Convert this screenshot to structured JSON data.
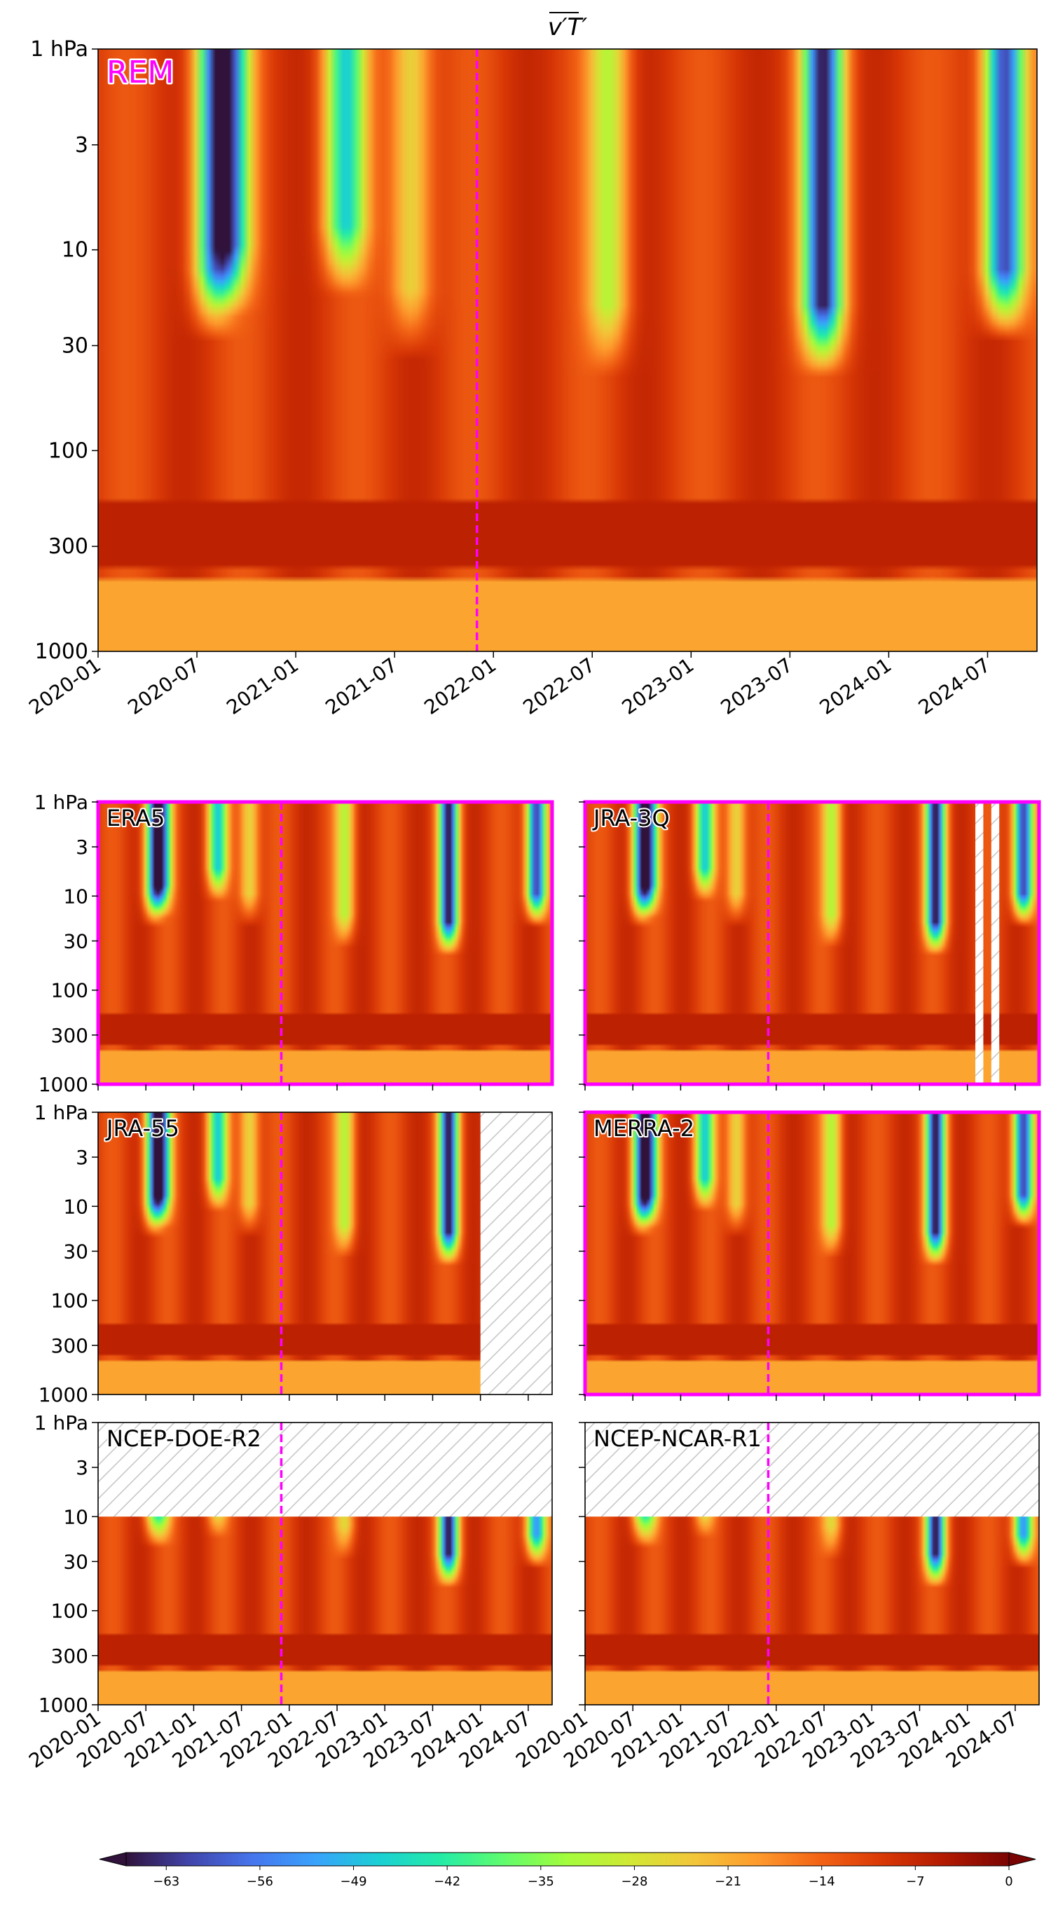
{
  "figure": {
    "title_main": "v′T′",
    "title_overbar": true
  },
  "colors": {
    "marker_line": "#ff00ff",
    "label_outline": "#ff00ff",
    "hatch": "#c8c8c8",
    "colormap": [
      "#30123b",
      "#4145ab",
      "#4675ed",
      "#39a2fc",
      "#1bcfd4",
      "#24eca6",
      "#61fc6c",
      "#a4fc3b",
      "#d1e834",
      "#f3c63a",
      "#fe9b2d",
      "#f36315",
      "#d93806",
      "#b11901",
      "#7a0403"
    ]
  },
  "chart_data": [
    {
      "type": "heatmap",
      "id": "REM",
      "panel_label": "REM",
      "label_color": "#ff00ff",
      "highlight_frame": false,
      "x_ticklabels": [
        "2020-01",
        "2020-07",
        "2021-01",
        "2021-07",
        "2022-01",
        "2022-07",
        "2023-01",
        "2023-07",
        "2024-01",
        "2024-07"
      ],
      "y_ticklabels": [
        "1 hPa",
        "3",
        "10",
        "30",
        "100",
        "300",
        "1000"
      ],
      "y_scale": "log",
      "ylim_hPa": [
        1000,
        1
      ],
      "xlim": [
        "2020-01",
        "2024-10"
      ],
      "vertical_marker": "2021-12",
      "missing": [],
      "descent_events": [
        {
          "center": "2020-08",
          "intensity": -45,
          "bottom_hPa": 20
        },
        {
          "center": "2020-09",
          "intensity": -48,
          "bottom_hPa": 15
        },
        {
          "center": "2021-04",
          "intensity": -45,
          "bottom_hPa": 12
        },
        {
          "center": "2021-08",
          "intensity": -28,
          "bottom_hPa": 25
        },
        {
          "center": "2022-08",
          "intensity": -30,
          "bottom_hPa": 30
        },
        {
          "center": "2023-09",
          "intensity": -63,
          "bottom_hPa": 30
        },
        {
          "center": "2024-08",
          "intensity": -63,
          "bottom_hPa": 20
        }
      ]
    },
    {
      "type": "heatmap",
      "id": "ERA5",
      "panel_label": "ERA5",
      "label_color": "#000000",
      "highlight_frame": true,
      "x_ticklabels": [],
      "y_ticklabels": [
        "1 hPa",
        "3",
        "10",
        "30",
        "100",
        "300",
        "1000"
      ],
      "y_scale": "log",
      "ylim_hPa": [
        1000,
        1
      ],
      "xlim": [
        "2020-01",
        "2024-10"
      ],
      "vertical_marker": "2021-12",
      "missing": [],
      "descent_events": [
        {
          "center": "2020-08",
          "intensity": -45,
          "bottom_hPa": 15
        },
        {
          "center": "2020-09",
          "intensity": -48,
          "bottom_hPa": 12
        },
        {
          "center": "2021-04",
          "intensity": -45,
          "bottom_hPa": 8
        },
        {
          "center": "2021-08",
          "intensity": -28,
          "bottom_hPa": 15
        },
        {
          "center": "2022-08",
          "intensity": -30,
          "bottom_hPa": 25
        },
        {
          "center": "2023-09",
          "intensity": -63,
          "bottom_hPa": 30
        },
        {
          "center": "2024-08",
          "intensity": -63,
          "bottom_hPa": 15
        }
      ]
    },
    {
      "type": "heatmap",
      "id": "JRA-3Q",
      "panel_label": "JRA-3Q",
      "label_color": "#000000",
      "highlight_frame": true,
      "x_ticklabels": [],
      "y_ticklabels": [],
      "y_scale": "log",
      "ylim_hPa": [
        1000,
        1
      ],
      "xlim": [
        "2020-01",
        "2024-10"
      ],
      "vertical_marker": "2021-12",
      "missing": [
        {
          "x_start": "2024-02",
          "x_end": "2024-03",
          "p_bottom_hPa": 1000
        },
        {
          "x_start": "2024-04",
          "x_end": "2024-05",
          "p_bottom_hPa": 1000
        }
      ],
      "descent_events": [
        {
          "center": "2020-08",
          "intensity": -45,
          "bottom_hPa": 15
        },
        {
          "center": "2020-09",
          "intensity": -48,
          "bottom_hPa": 12
        },
        {
          "center": "2021-04",
          "intensity": -45,
          "bottom_hPa": 8
        },
        {
          "center": "2021-08",
          "intensity": -28,
          "bottom_hPa": 15
        },
        {
          "center": "2022-08",
          "intensity": -30,
          "bottom_hPa": 25
        },
        {
          "center": "2023-09",
          "intensity": -63,
          "bottom_hPa": 30
        },
        {
          "center": "2024-08",
          "intensity": -63,
          "bottom_hPa": 15
        }
      ]
    },
    {
      "type": "heatmap",
      "id": "JRA-55",
      "panel_label": "JRA-55",
      "label_color": "#000000",
      "highlight_frame": false,
      "x_ticklabels": [],
      "y_ticklabels": [
        "1 hPa",
        "3",
        "10",
        "30",
        "100",
        "300",
        "1000"
      ],
      "y_scale": "log",
      "ylim_hPa": [
        1000,
        1
      ],
      "xlim": [
        "2020-01",
        "2024-10"
      ],
      "vertical_marker": "2021-12",
      "missing": [
        {
          "x_start": "2024-01",
          "x_end": "2024-10",
          "p_bottom_hPa": 1000
        }
      ],
      "descent_events": [
        {
          "center": "2020-08",
          "intensity": -45,
          "bottom_hPa": 15
        },
        {
          "center": "2020-09",
          "intensity": -48,
          "bottom_hPa": 12
        },
        {
          "center": "2021-04",
          "intensity": -45,
          "bottom_hPa": 8
        },
        {
          "center": "2021-08",
          "intensity": -28,
          "bottom_hPa": 15
        },
        {
          "center": "2022-08",
          "intensity": -30,
          "bottom_hPa": 25
        },
        {
          "center": "2023-09",
          "intensity": -63,
          "bottom_hPa": 30
        }
      ]
    },
    {
      "type": "heatmap",
      "id": "MERRA-2",
      "panel_label": "MERRA-2",
      "label_color": "#000000",
      "highlight_frame": true,
      "x_ticklabels": [],
      "y_ticklabels": [],
      "y_scale": "log",
      "ylim_hPa": [
        1000,
        1
      ],
      "xlim": [
        "2020-01",
        "2024-10"
      ],
      "vertical_marker": "2021-12",
      "missing": [],
      "descent_events": [
        {
          "center": "2020-08",
          "intensity": -45,
          "bottom_hPa": 15
        },
        {
          "center": "2020-09",
          "intensity": -48,
          "bottom_hPa": 12
        },
        {
          "center": "2021-04",
          "intensity": -45,
          "bottom_hPa": 8
        },
        {
          "center": "2021-08",
          "intensity": -28,
          "bottom_hPa": 15
        },
        {
          "center": "2022-08",
          "intensity": -30,
          "bottom_hPa": 25
        },
        {
          "center": "2023-09",
          "intensity": -63,
          "bottom_hPa": 30
        },
        {
          "center": "2024-08",
          "intensity": -63,
          "bottom_hPa": 12
        }
      ]
    },
    {
      "type": "heatmap",
      "id": "NCEP-DOE-R2",
      "panel_label": "NCEP-DOE-R2",
      "label_color": "#000000",
      "highlight_frame": false,
      "x_ticklabels": [
        "2020-01",
        "2020-07",
        "2021-01",
        "2021-07",
        "2022-01",
        "2022-07",
        "2023-01",
        "2023-07",
        "2024-01",
        "2024-07"
      ],
      "y_ticklabels": [
        "1 hPa",
        "3",
        "10",
        "30",
        "100",
        "300",
        "1000"
      ],
      "y_scale": "log",
      "ylim_hPa": [
        1000,
        1
      ],
      "xlim": [
        "2020-01",
        "2024-10"
      ],
      "vertical_marker": "2021-12",
      "missing": [
        {
          "x_start": "2020-01",
          "x_end": "2024-10",
          "p_bottom_hPa": 10
        }
      ],
      "descent_events": [
        {
          "center": "2020-08",
          "intensity": -30,
          "bottom_hPa": 15
        },
        {
          "center": "2020-09",
          "intensity": -30,
          "bottom_hPa": 15
        },
        {
          "center": "2021-04",
          "intensity": -30,
          "bottom_hPa": 12
        },
        {
          "center": "2022-08",
          "intensity": -25,
          "bottom_hPa": 20
        },
        {
          "center": "2023-09",
          "intensity": -63,
          "bottom_hPa": 40
        },
        {
          "center": "2024-08",
          "intensity": -55,
          "bottom_hPa": 25
        }
      ]
    },
    {
      "type": "heatmap",
      "id": "NCEP-NCAR-R1",
      "panel_label": "NCEP-NCAR-R1",
      "label_color": "#000000",
      "highlight_frame": false,
      "x_ticklabels": [
        "2020-01",
        "2020-07",
        "2021-01",
        "2021-07",
        "2022-01",
        "2022-07",
        "2023-01",
        "2023-07",
        "2024-01",
        "2024-07"
      ],
      "y_ticklabels": [],
      "y_scale": "log",
      "ylim_hPa": [
        1000,
        1
      ],
      "xlim": [
        "2020-01",
        "2024-10"
      ],
      "vertical_marker": "2021-12",
      "missing": [
        {
          "x_start": "2020-01",
          "x_end": "2024-10",
          "p_bottom_hPa": 10
        }
      ],
      "descent_events": [
        {
          "center": "2020-08",
          "intensity": -30,
          "bottom_hPa": 15
        },
        {
          "center": "2020-09",
          "intensity": -30,
          "bottom_hPa": 15
        },
        {
          "center": "2021-04",
          "intensity": -30,
          "bottom_hPa": 12
        },
        {
          "center": "2022-08",
          "intensity": -25,
          "bottom_hPa": 20
        },
        {
          "center": "2023-09",
          "intensity": -63,
          "bottom_hPa": 40
        },
        {
          "center": "2024-08",
          "intensity": -55,
          "bottom_hPa": 25
        }
      ]
    }
  ],
  "colorbar": {
    "ticks": [
      "−63",
      "−56",
      "−49",
      "−42",
      "−35",
      "−28",
      "−21",
      "−14",
      "−7",
      "0"
    ],
    "vmin": -66,
    "vmax": 0,
    "extend": "both"
  }
}
